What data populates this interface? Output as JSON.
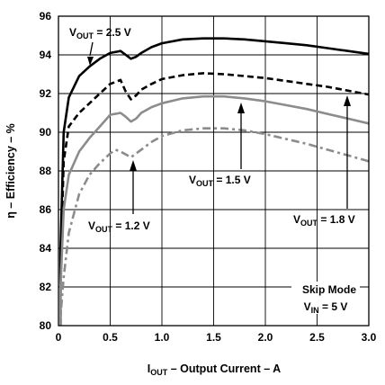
{
  "chart_data": {
    "type": "line",
    "xlabel": "I",
    "xlabel_sub": "OUT",
    "xlabel_rest": " – Output Current – A",
    "ylabel": "η – Efficiency – %",
    "xlim": [
      0,
      3.0
    ],
    "ylim": [
      80,
      96
    ],
    "grid": true,
    "x_ticks": [
      0,
      0.5,
      1.0,
      1.5,
      2.0,
      2.5,
      3.0
    ],
    "x_tick_labels": [
      "0",
      "0.5",
      "1.0",
      "1.5",
      "2.0",
      "2.5",
      "3.0"
    ],
    "y_ticks": [
      80,
      82,
      84,
      86,
      88,
      90,
      92,
      94,
      96
    ],
    "y_tick_labels": [
      "80",
      "82",
      "84",
      "86",
      "88",
      "90",
      "92",
      "94",
      "96"
    ],
    "series": [
      {
        "name_main": "V",
        "name_sub": "OUT",
        "name_rest": " = 2.5 V",
        "color": "#000000",
        "style": "solid",
        "x": [
          0.02,
          0.05,
          0.1,
          0.2,
          0.3,
          0.4,
          0.5,
          0.6,
          0.65,
          0.7,
          0.75,
          0.8,
          0.9,
          1.0,
          1.2,
          1.4,
          1.6,
          1.8,
          2.0,
          2.2,
          2.4,
          2.6,
          2.8,
          3.0
        ],
        "values": [
          84.0,
          90.0,
          91.8,
          92.9,
          93.4,
          93.8,
          94.1,
          94.2,
          94.0,
          93.8,
          93.9,
          94.1,
          94.4,
          94.6,
          94.8,
          94.85,
          94.85,
          94.8,
          94.7,
          94.6,
          94.5,
          94.35,
          94.2,
          94.05
        ]
      },
      {
        "name_main": "V",
        "name_sub": "OUT",
        "name_rest": " = 1.8 V",
        "color": "#000000",
        "style": "dashed",
        "x": [
          0.02,
          0.05,
          0.1,
          0.2,
          0.3,
          0.4,
          0.5,
          0.6,
          0.65,
          0.7,
          0.75,
          0.8,
          0.9,
          1.0,
          1.2,
          1.4,
          1.6,
          1.8,
          2.0,
          2.2,
          2.4,
          2.6,
          2.8,
          3.0
        ],
        "values": [
          83.0,
          88.5,
          90.3,
          91.0,
          91.5,
          92.0,
          92.5,
          92.7,
          92.1,
          91.7,
          91.9,
          92.2,
          92.5,
          92.75,
          92.95,
          93.05,
          93.0,
          92.9,
          92.8,
          92.65,
          92.5,
          92.35,
          92.15,
          91.95
        ]
      },
      {
        "name_main": "V",
        "name_sub": "OUT",
        "name_rest": " = 1.5 V",
        "color": "#8c8c8c",
        "style": "solid",
        "x": [
          0.02,
          0.05,
          0.1,
          0.2,
          0.3,
          0.4,
          0.5,
          0.6,
          0.65,
          0.7,
          0.75,
          0.8,
          0.9,
          1.0,
          1.2,
          1.4,
          1.6,
          1.8,
          2.0,
          2.2,
          2.4,
          2.6,
          2.8,
          3.0
        ],
        "values": [
          82.0,
          86.0,
          87.8,
          89.0,
          89.7,
          90.3,
          90.9,
          91.0,
          90.8,
          90.55,
          90.7,
          91.0,
          91.3,
          91.5,
          91.75,
          91.85,
          91.85,
          91.75,
          91.6,
          91.4,
          91.2,
          90.95,
          90.7,
          90.45
        ]
      },
      {
        "name_main": "V",
        "name_sub": "OUT",
        "name_rest": " = 1.2 V",
        "color": "#8c8c8c",
        "style": "dashdot",
        "x": [
          0.02,
          0.05,
          0.1,
          0.2,
          0.3,
          0.4,
          0.5,
          0.55,
          0.6,
          0.65,
          0.7,
          0.75,
          0.8,
          0.9,
          1.0,
          1.2,
          1.4,
          1.6,
          1.8,
          2.0,
          2.2,
          2.4,
          2.6,
          2.8,
          3.0
        ],
        "values": [
          80.5,
          82.5,
          84.8,
          86.8,
          87.8,
          88.4,
          88.9,
          89.1,
          89.0,
          88.85,
          88.7,
          88.9,
          89.1,
          89.5,
          89.8,
          90.1,
          90.2,
          90.2,
          90.1,
          89.9,
          89.65,
          89.4,
          89.1,
          88.8,
          88.5
        ]
      }
    ],
    "annotations": [
      {
        "main": "V",
        "sub": "OUT",
        "rest": " = 2.5 V",
        "series": 0
      },
      {
        "main": "V",
        "sub": "OUT",
        "rest": " = 1.8 V",
        "series": 1
      },
      {
        "main": "V",
        "sub": "OUT",
        "rest": " = 1.5 V",
        "series": 2
      },
      {
        "main": "V",
        "sub": "OUT",
        "rest": " = 1.2 V",
        "series": 3
      }
    ],
    "conditions": {
      "mode": "Skip Mode",
      "vin_main": "V",
      "vin_sub": "IN",
      "vin_rest": " = 5 V"
    }
  }
}
